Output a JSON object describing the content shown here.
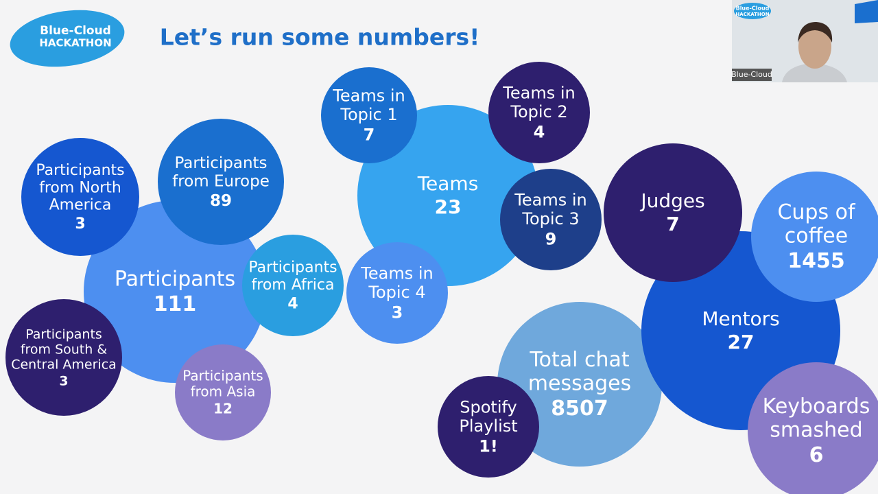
{
  "logo": {
    "line1": "Blue-Cloud",
    "line2": "HACKATHON"
  },
  "title": "Let’s run some numbers!",
  "webcam": {
    "label": "Blue-Cloud",
    "logo_line1": "Blue-Cloud",
    "logo_line2": "HACKATHON"
  },
  "bubbles": [
    {
      "label": [
        "Participants"
      ],
      "value": "111"
    },
    {
      "label": [
        "Participants",
        "from Europe"
      ],
      "value": "89"
    },
    {
      "label": [
        "Participants",
        "from North",
        "America"
      ],
      "value": "3"
    },
    {
      "label": [
        "Participants",
        "from Africa"
      ],
      "value": "4"
    },
    {
      "label": [
        "Participants",
        "from South &",
        "Central America"
      ],
      "value": "3"
    },
    {
      "label": [
        "Participants",
        "from Asia"
      ],
      "value": "12"
    },
    {
      "label": [
        "Teams"
      ],
      "value": "23"
    },
    {
      "label": [
        "Teams in",
        "Topic 1"
      ],
      "value": "7"
    },
    {
      "label": [
        "Teams in",
        "Topic 2"
      ],
      "value": "4"
    },
    {
      "label": [
        "Teams in",
        "Topic 3"
      ],
      "value": "9"
    },
    {
      "label": [
        "Teams in",
        "Topic 4"
      ],
      "value": "3"
    },
    {
      "label": [
        "Total chat",
        "messages"
      ],
      "value": "8507"
    },
    {
      "label": [
        "Spotify",
        "Playlist"
      ],
      "value": "1!"
    },
    {
      "label": [
        "Mentors"
      ],
      "value": "27"
    },
    {
      "label": [
        "Judges"
      ],
      "value": "7"
    },
    {
      "label": [
        "Cups of",
        "coffee"
      ],
      "value": "1455"
    },
    {
      "label": [
        "Keyboards",
        "smashed"
      ],
      "value": "6"
    }
  ]
}
